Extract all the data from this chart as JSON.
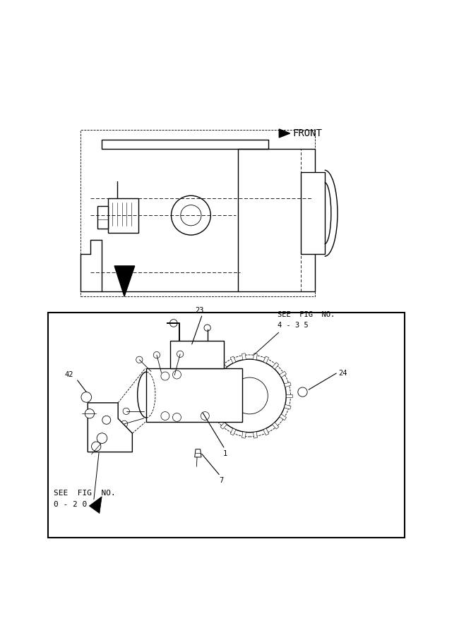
{
  "bg_color": "#ffffff",
  "line_color": "#000000",
  "front_label": "FRONT",
  "see_fig_top_1": "SEE  FIG  NO.",
  "see_fig_top_2": "4 - 3 5",
  "see_fig_bottom_1": "SEE  FIG  NO.",
  "see_fig_bottom_2": "0 - 2 0",
  "fig_width": 6.67,
  "fig_height": 9.0,
  "lw_main": 1.0,
  "lw_thin": 0.6,
  "lw_dash": 0.6
}
